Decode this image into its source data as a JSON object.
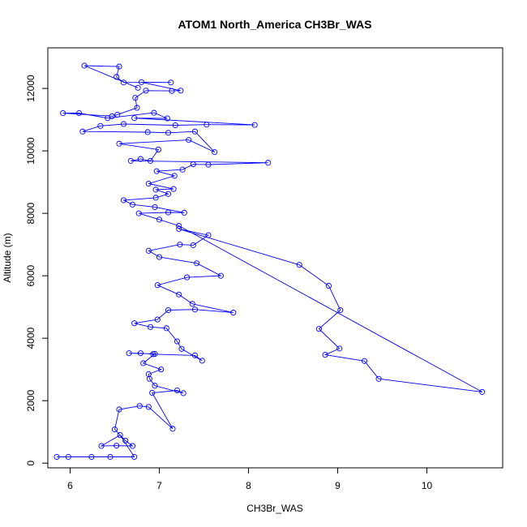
{
  "chart_data": {
    "type": "line",
    "title": "ATOM1 North_America CH3Br_WAS",
    "xlabel": "CH3Br_WAS",
    "ylabel": "Altitude (m)",
    "xlim": [
      5.75,
      10.85
    ],
    "ylim": [
      -150,
      13300
    ],
    "x_ticks": [
      6,
      7,
      8,
      9,
      10
    ],
    "x_tick_labels": [
      "6",
      "7",
      "8",
      "9",
      "10"
    ],
    "y_ticks": [
      0,
      2000,
      4000,
      6000,
      8000,
      10000,
      12000
    ],
    "y_tick_labels": [
      "0",
      "2000",
      "4000",
      "6000",
      "8000",
      "10000",
      "12000"
    ],
    "grid": false,
    "colors": {
      "series": "#0000ff",
      "axis": "#000000"
    },
    "series": [
      {
        "marker": "open-circle",
        "points": [
          [
            5.85,
            200
          ],
          [
            5.98,
            200
          ],
          [
            6.24,
            200
          ],
          [
            6.45,
            200
          ],
          [
            6.72,
            200
          ],
          [
            6.56,
            900
          ],
          [
            6.35,
            550
          ],
          [
            6.52,
            560
          ],
          [
            6.7,
            550
          ],
          [
            6.62,
            720
          ],
          [
            6.5,
            1080
          ],
          [
            6.55,
            1720
          ],
          [
            6.78,
            1830
          ],
          [
            6.88,
            1800
          ],
          [
            7.15,
            1100
          ],
          [
            6.92,
            2250
          ],
          [
            7.2,
            2330
          ],
          [
            7.27,
            2240
          ],
          [
            6.95,
            2480
          ],
          [
            6.89,
            2700
          ],
          [
            6.88,
            2850
          ],
          [
            7.02,
            3000
          ],
          [
            6.82,
            3200
          ],
          [
            6.95,
            3500
          ],
          [
            6.66,
            3520
          ],
          [
            6.79,
            3520
          ],
          [
            6.93,
            3490
          ],
          [
            7.4,
            3450
          ],
          [
            7.48,
            3280
          ],
          [
            7.25,
            3660
          ],
          [
            7.2,
            3900
          ],
          [
            7.08,
            4320
          ],
          [
            6.9,
            4360
          ],
          [
            6.72,
            4480
          ],
          [
            6.98,
            4600
          ],
          [
            7.1,
            4900
          ],
          [
            7.4,
            4920
          ],
          [
            7.83,
            4820
          ],
          [
            7.37,
            5100
          ],
          [
            7.22,
            5400
          ],
          [
            6.98,
            5700
          ],
          [
            7.31,
            5950
          ],
          [
            7.69,
            6000
          ],
          [
            7.42,
            6400
          ],
          [
            7.0,
            6600
          ],
          [
            6.88,
            6800
          ],
          [
            7.23,
            7000
          ],
          [
            7.38,
            6980
          ],
          [
            7.55,
            7300
          ],
          [
            7.22,
            7500
          ],
          [
            8.57,
            6350
          ],
          [
            8.9,
            5680
          ],
          [
            9.03,
            4900
          ],
          [
            8.79,
            4300
          ],
          [
            9.02,
            3670
          ],
          [
            8.86,
            3470
          ],
          [
            9.3,
            3270
          ],
          [
            9.46,
            2700
          ],
          [
            10.62,
            2280
          ],
          [
            7.22,
            7600
          ],
          [
            7.0,
            7800
          ],
          [
            6.77,
            8000
          ],
          [
            7.1,
            8030
          ],
          [
            7.28,
            8020
          ],
          [
            6.95,
            8200
          ],
          [
            6.7,
            8280
          ],
          [
            6.6,
            8420
          ],
          [
            6.96,
            8500
          ],
          [
            7.1,
            8620
          ],
          [
            6.96,
            8760
          ],
          [
            7.16,
            8780
          ],
          [
            6.88,
            8950
          ],
          [
            7.17,
            9200
          ],
          [
            6.97,
            9350
          ],
          [
            7.26,
            9400
          ],
          [
            7.38,
            9570
          ],
          [
            7.55,
            9560
          ],
          [
            8.22,
            9620
          ],
          [
            6.68,
            9680
          ],
          [
            6.79,
            9740
          ],
          [
            6.9,
            9680
          ],
          [
            6.99,
            10040
          ],
          [
            6.55,
            10230
          ],
          [
            7.33,
            10350
          ],
          [
            7.62,
            9960
          ],
          [
            7.4,
            10620
          ],
          [
            7.1,
            10580
          ],
          [
            6.87,
            10600
          ],
          [
            6.14,
            10620
          ],
          [
            6.34,
            10800
          ],
          [
            6.6,
            10860
          ],
          [
            7.18,
            10820
          ],
          [
            7.53,
            10840
          ],
          [
            8.07,
            10830
          ],
          [
            6.72,
            11050
          ],
          [
            7.09,
            11040
          ],
          [
            6.94,
            11220
          ],
          [
            6.42,
            11050
          ],
          [
            6.1,
            11210
          ],
          [
            5.92,
            11210
          ],
          [
            6.47,
            11110
          ],
          [
            6.53,
            11160
          ],
          [
            6.75,
            11380
          ],
          [
            6.73,
            11700
          ],
          [
            6.85,
            11930
          ],
          [
            7.14,
            11920
          ],
          [
            7.24,
            11930
          ],
          [
            6.8,
            12200
          ],
          [
            7.13,
            12190
          ],
          [
            6.6,
            12190
          ],
          [
            6.52,
            12370
          ],
          [
            6.55,
            12700
          ],
          [
            6.16,
            12730
          ],
          [
            6.76,
            12020
          ]
        ]
      }
    ]
  }
}
